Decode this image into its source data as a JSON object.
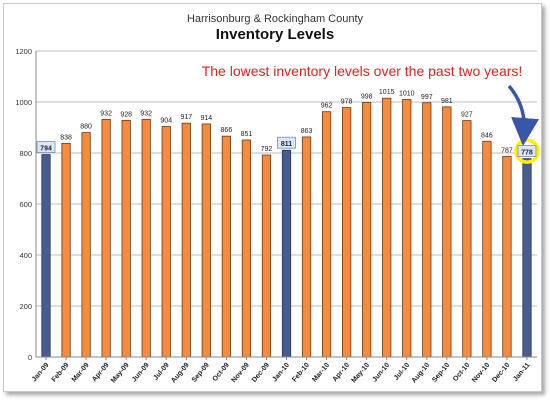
{
  "chart_data": {
    "type": "bar",
    "subtitle": "Harrisonburg & Rockingham County",
    "title": "Inventory Levels",
    "categories": [
      "Jan-09",
      "Feb-09",
      "Mar-09",
      "Apr-09",
      "May-09",
      "Jun-09",
      "Jul-09",
      "Aug-09",
      "Sep-09",
      "Oct-09",
      "Nov-09",
      "Dec-09",
      "Jan-10",
      "Feb-10",
      "Mar-10",
      "Apr-10",
      "May-10",
      "Jun-10",
      "Jul-10",
      "Aug-10",
      "Sep-10",
      "Oct-10",
      "Nov-10",
      "Dec-10",
      "Jan-11"
    ],
    "values": [
      794,
      838,
      880,
      932,
      928,
      932,
      904,
      917,
      914,
      866,
      851,
      792,
      811,
      863,
      962,
      978,
      998,
      1015,
      1010,
      997,
      981,
      927,
      846,
      787,
      778
    ],
    "highlight_categories": [
      "Jan-09",
      "Jan-10",
      "Jan-11"
    ],
    "circled_category": "Jan-11",
    "ylim": [
      0,
      1200
    ],
    "yticks": [
      0,
      200,
      400,
      600,
      800,
      1000,
      1200
    ],
    "data_labels": [
      "794",
      "838",
      "880",
      "932",
      "928",
      "932",
      "904",
      "917",
      "914",
      "866",
      "851",
      "792",
      "811",
      "863",
      "962",
      "978",
      "998",
      "1015",
      "1010",
      "997",
      "981",
      "927",
      "846",
      "787",
      "778"
    ],
    "colors": {
      "bar": "#f58b3e",
      "bar_highlight": "#4a5b8e",
      "label_box": "#dde6f4",
      "circle": "#ffee00",
      "annotation": "#e41f1f",
      "arrow": "#3a56a8"
    },
    "annotation": "The lowest inventory levels over the past two years!",
    "grid": true,
    "legend": "none"
  }
}
